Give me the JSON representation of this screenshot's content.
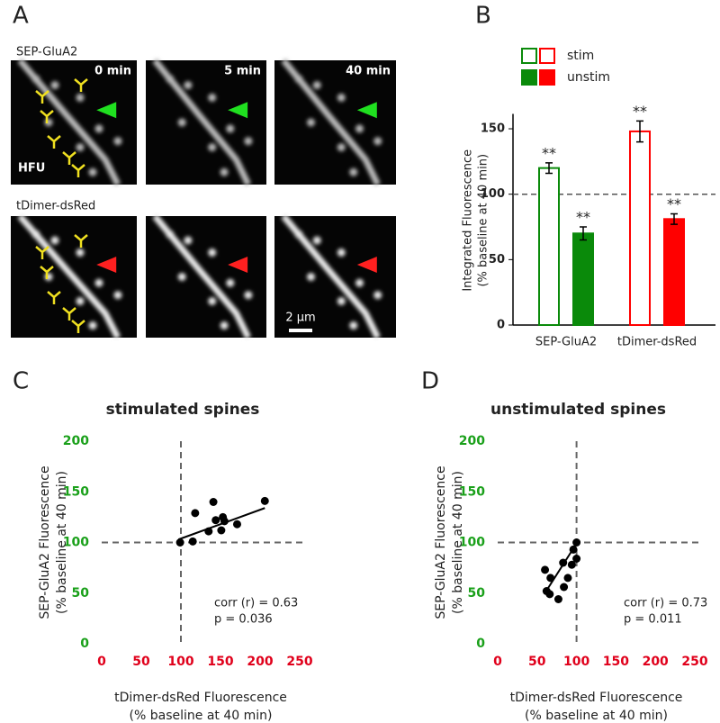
{
  "panel_labels": [
    "A",
    "B",
    "C",
    "D"
  ],
  "image_panel": {
    "rows": [
      "SEP-GluA2",
      "tDimer-dsRed"
    ],
    "times": [
      "0 min",
      "5 min",
      "40 min"
    ],
    "stim_label": "HFU",
    "scale_bar": "2 µm"
  },
  "chart_data": [
    {
      "type": "bar",
      "categories": [
        "SEP-GluA2",
        "tDimer-dsRed"
      ],
      "category_colors": [
        "#0a8a0a",
        "#ff0000"
      ],
      "series": [
        {
          "name": "stim",
          "fill": "open",
          "values": [
            120,
            148
          ],
          "errors": [
            4,
            8
          ],
          "annotations": [
            "**",
            "**"
          ]
        },
        {
          "name": "unstim",
          "fill": "solid",
          "values": [
            70,
            81
          ],
          "errors": [
            5,
            4
          ],
          "annotations": [
            "**",
            "**"
          ]
        }
      ],
      "ylabel": [
        "Integrated Fluorescence",
        "(% baseline at 40 min)"
      ],
      "ylim": [
        0,
        160
      ],
      "yticks": [
        0,
        50,
        100,
        150
      ],
      "reference_line": 100
    },
    {
      "type": "scatter",
      "title": "stimulated spines",
      "x": [
        99,
        118,
        115,
        141,
        135,
        144,
        151,
        153,
        155,
        171,
        206
      ],
      "values": [
        100,
        129,
        101,
        140,
        111,
        122,
        112,
        125,
        121,
        118,
        141
      ],
      "fit": {
        "x": [
          97,
          206
        ],
        "y": [
          103,
          134
        ]
      },
      "reference_lines": {
        "x": 100,
        "y": 100
      },
      "annotation": [
        "corr (r) = 0.63",
        "p = 0.036"
      ],
      "xlabel": [
        "tDimer-dsRed Fluorescence",
        "(% baseline at 40 min)"
      ],
      "ylabel": [
        "SEP-GluA2 Fluorescence",
        "(% baseline at 40 min)"
      ],
      "xlim": [
        0,
        250
      ],
      "xticks": [
        0,
        50,
        100,
        150,
        200,
        250
      ],
      "ylim": [
        0,
        200
      ],
      "yticks": [
        0,
        50,
        100,
        150,
        200
      ],
      "xtick_color": "#e0001b",
      "ytick_color": "#1aa01a"
    },
    {
      "type": "scatter",
      "title": "unstimulated spines",
      "x": [
        60,
        67,
        62,
        66,
        77,
        84,
        89,
        94,
        100,
        96,
        100,
        83
      ],
      "values": [
        73,
        65,
        52,
        49,
        44,
        56,
        65,
        78,
        84,
        93,
        100,
        80
      ],
      "fit": {
        "x": [
          59,
          100
        ],
        "y": [
          49,
          99
        ]
      },
      "reference_lines": {
        "x": 100,
        "y": 100
      },
      "annotation": [
        "corr (r) = 0.73",
        "p = 0.011"
      ],
      "xlabel": [
        "tDimer-dsRed Fluorescence",
        "(% baseline at 40 min)"
      ],
      "ylabel": [
        "SEP-GluA2 Fluorescence",
        "(% baseline at 40 min)"
      ],
      "xlim": [
        0,
        250
      ],
      "xticks": [
        0,
        50,
        100,
        150,
        200,
        250
      ],
      "ylim": [
        0,
        200
      ],
      "yticks": [
        0,
        50,
        100,
        150,
        200
      ],
      "xtick_color": "#e0001b",
      "ytick_color": "#1aa01a"
    }
  ]
}
